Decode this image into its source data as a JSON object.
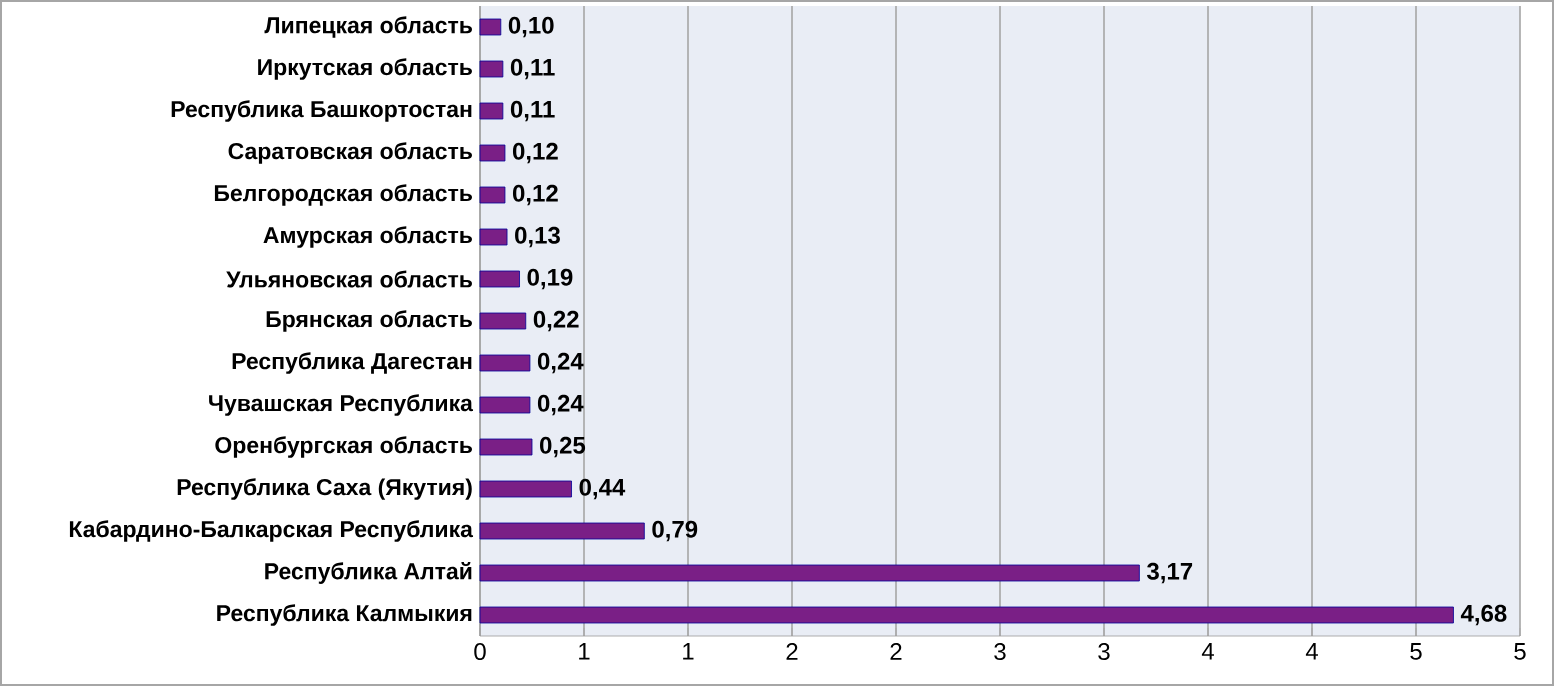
{
  "chart_data": {
    "type": "bar",
    "orientation": "horizontal",
    "categories": [
      "Липецкая область",
      "Иркутская область",
      "Республика Башкортостан",
      "Саратовская область",
      "Белгородская область",
      "Амурская область",
      "Ульяновская область",
      "Брянская область",
      "Республика Дагестан",
      "Чувашская Республика",
      "Оренбургская область",
      "Республика Саха (Якутия)",
      "Кабардино-Балкарская Республика",
      "Республика Алтай",
      "Республика Калмыкия"
    ],
    "values": [
      0.1,
      0.11,
      0.11,
      0.12,
      0.12,
      0.13,
      0.19,
      0.22,
      0.24,
      0.24,
      0.25,
      0.44,
      0.79,
      3.17,
      4.68
    ],
    "value_labels": [
      "0,10",
      "0,11",
      "0,11",
      "0,12",
      "0,12",
      "0,13",
      "0,19",
      "0,22",
      "0,24",
      "0,24",
      "0,25",
      "0,44",
      "0,79",
      "3,17",
      "4,68"
    ],
    "color": "#7a1f86",
    "xlim": [
      0,
      5
    ],
    "xticks": [
      0,
      {
        "value": 0.5,
        "label": "1"
      },
      1,
      {
        "value": 1.5,
        "label": "2"
      },
      2,
      {
        "value": 2.5,
        "label": "3"
      },
      3,
      {
        "value": 3.5,
        "label": "4"
      },
      4,
      {
        "value": 4.5,
        "label": "5"
      },
      5
    ],
    "grid": "x"
  }
}
